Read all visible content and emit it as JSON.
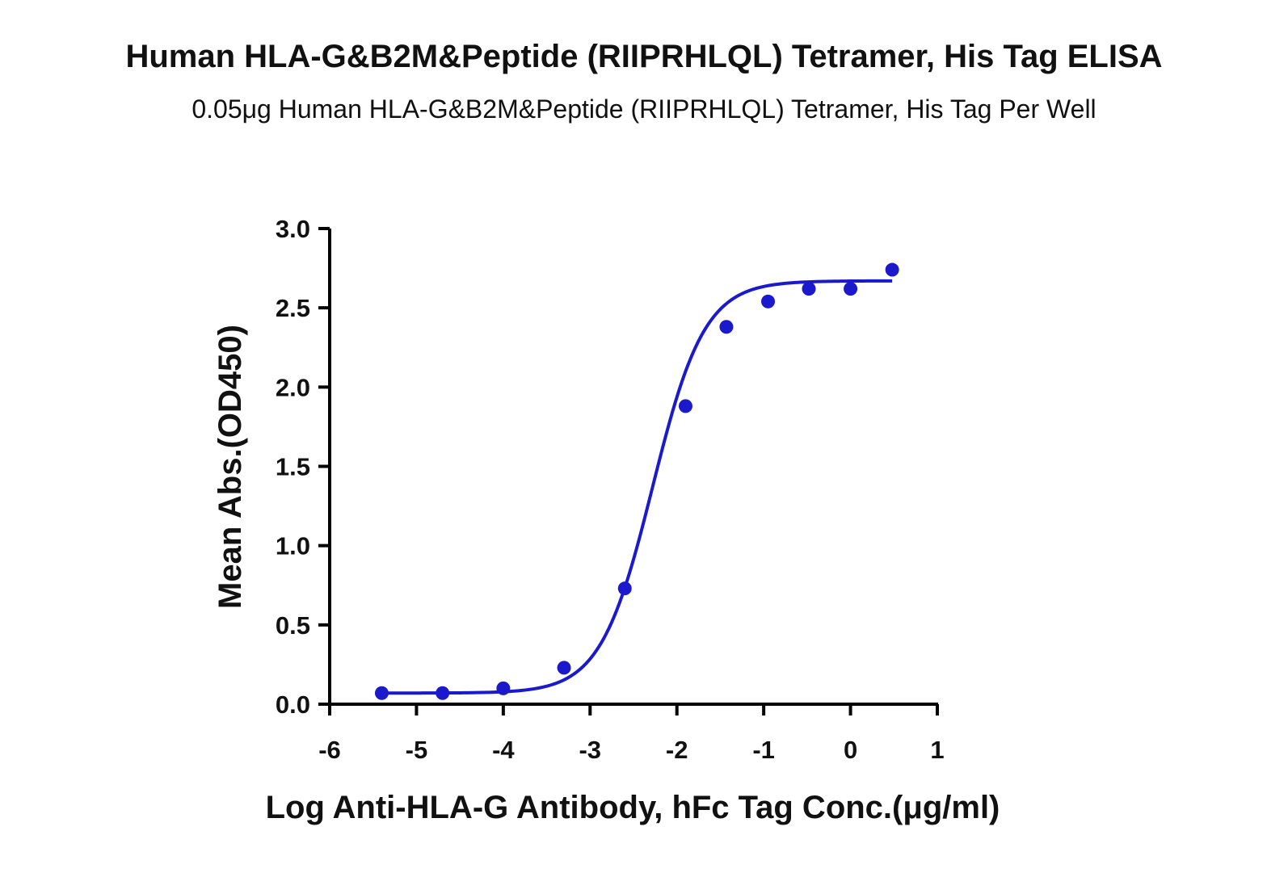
{
  "title": "Human HLA-G&B2M&Peptide (RIIPRHLQL) Tetramer, His Tag ELISA",
  "subtitle": "0.05μg Human HLA-G&B2M&Peptide (RIIPRHLQL) Tetramer, His Tag Per Well",
  "chart_data": {
    "type": "scatter",
    "title": "Human HLA-G&B2M&Peptide (RIIPRHLQL) Tetramer, His Tag ELISA",
    "subtitle": "0.05μg Human HLA-G&B2M&Peptide (RIIPRHLQL) Tetramer, His Tag Per Well",
    "xlabel": "Log Anti-HLA-G Antibody, hFc Tag Conc.(μg/ml)",
    "ylabel": "Mean Abs.(OD450)",
    "xlim": [
      -6,
      1
    ],
    "ylim": [
      0,
      3.0
    ],
    "xticks": [
      "-6",
      "-5",
      "-4",
      "-3",
      "-2",
      "-1",
      "0",
      "1"
    ],
    "yticks": [
      "0.0",
      "0.5",
      "1.0",
      "1.5",
      "2.0",
      "2.5",
      "3.0"
    ],
    "grid": false,
    "color": "#1a1acc",
    "series": [
      {
        "x": [
          -5.4,
          -4.7,
          -4.0,
          -3.3,
          -2.6,
          -1.9,
          -1.43,
          -0.95,
          -0.48,
          0.0,
          0.48
        ],
        "y": [
          0.07,
          0.07,
          0.1,
          0.23,
          0.73,
          1.88,
          2.38,
          2.54,
          2.62,
          2.62,
          2.74
        ]
      }
    ],
    "fit": {
      "type": "4PL",
      "bottom": 0.07,
      "top": 2.67,
      "logEC50": -2.28,
      "hill": 1.45
    }
  }
}
